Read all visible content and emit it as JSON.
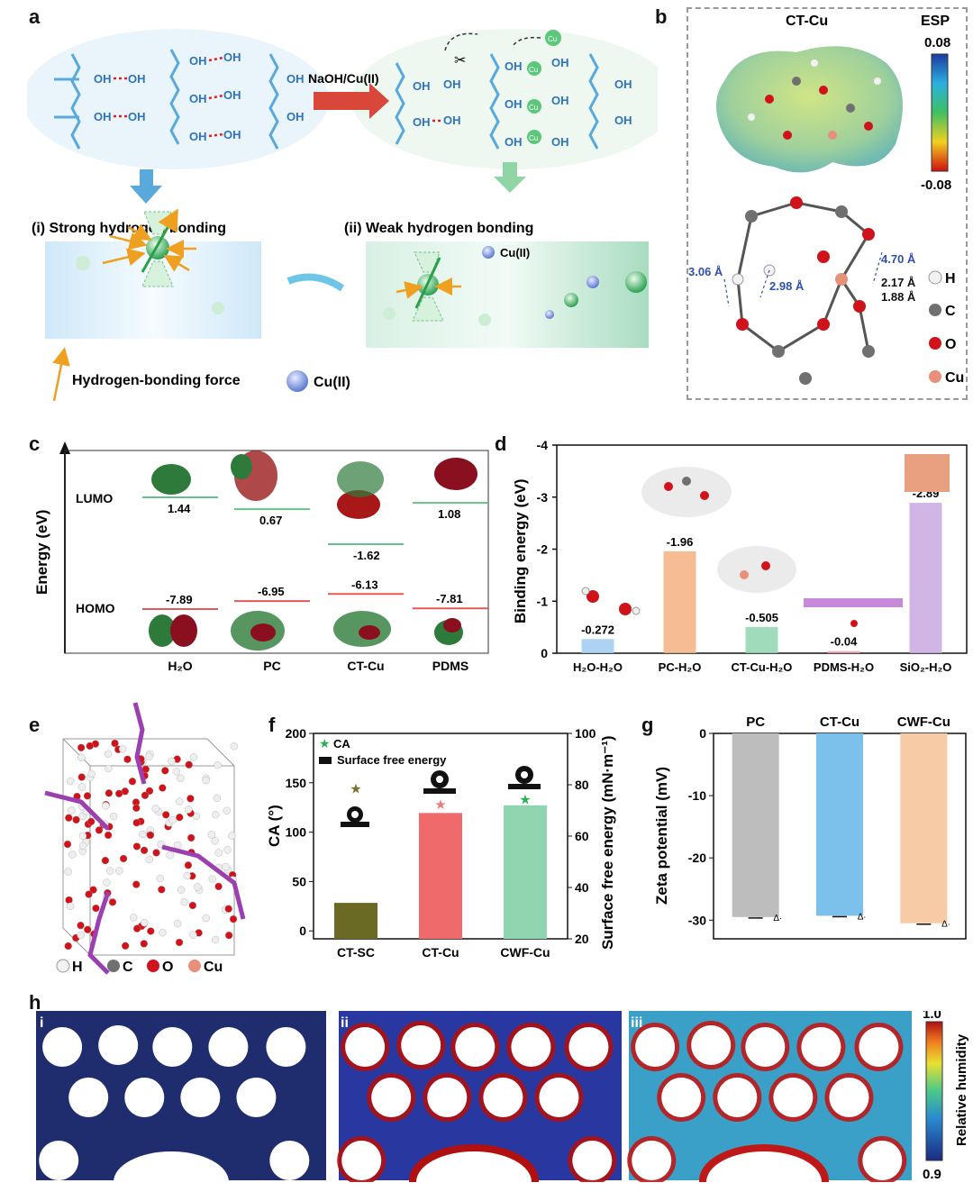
{
  "panels": {
    "a": "a",
    "b": "b",
    "c": "c",
    "d": "d",
    "e": "e",
    "f": "f",
    "g": "g",
    "h": "h"
  },
  "panel_a": {
    "reaction": "NaOH/Cu(II)",
    "oh": "OH",
    "cu": "Cu",
    "strong_label": "(i) Strong  hydrogen bonding",
    "weak_label": "(ii) Weak hydrogen bonding",
    "cu_ii": "Cu(II)",
    "legend_force": "Hydrogen-bonding force",
    "legend_cu": "Cu(II)"
  },
  "panel_b": {
    "title": "CT-Cu",
    "esp": "ESP",
    "esp_max": "0.08",
    "esp_min": "-0.08",
    "distances": [
      "3.06 Å",
      "2.98 Å",
      "4.70 Å",
      "2.17 Å",
      "1.88 Å"
    ],
    "legend": [
      "H",
      "C",
      "O",
      "Cu"
    ],
    "colors": {
      "H": "#f2f2f2",
      "C": "#707070",
      "O": "#d0121b",
      "Cu": "#e8907a"
    }
  },
  "chart_data": [
    {
      "id": "c",
      "type": "table",
      "title": "",
      "ylabel": "Energy (eV)",
      "row_labels": [
        "LUMO",
        "HOMO"
      ],
      "categories": [
        "H₂O",
        "PC",
        "CT-Cu",
        "PDMS"
      ],
      "series": [
        {
          "name": "LUMO",
          "values": [
            1.44,
            0.67,
            -1.62,
            1.08
          ]
        },
        {
          "name": "HOMO",
          "values": [
            -7.89,
            -6.95,
            -6.13,
            -7.81
          ]
        }
      ]
    },
    {
      "id": "d",
      "type": "bar",
      "categories": [
        "H₂O-H₂O",
        "PC-H₂O",
        "CT-Cu-H₂O",
        "PDMS-H₂O",
        "SiO₂-H₂O"
      ],
      "values": [
        -0.272,
        -1.96,
        -0.505,
        -0.04,
        -2.89
      ],
      "value_labels": [
        "-0.272",
        "-1.96",
        "-0.505",
        "-0.04",
        "-2.89"
      ],
      "ylabel": "Binding energy (eV)",
      "ylim": [
        0,
        -4
      ],
      "yticks": [
        "0",
        "-1",
        "-2",
        "-3",
        "-4"
      ],
      "colors": [
        "#9dcdf0",
        "#f4b183",
        "#8fd5b0",
        "#f0a0a8",
        "#c9a8e0"
      ]
    },
    {
      "id": "f",
      "type": "bar",
      "categories": [
        "CT-SC",
        "CT-Cu",
        "CWF-Cu"
      ],
      "series": [
        {
          "name": "Surface free energy",
          "values": [
            34,
            69,
            72
          ],
          "axis": "right"
        },
        {
          "name": "CA",
          "values": [
            145,
            129,
            134
          ],
          "axis": "left"
        }
      ],
      "ylabel": "CA (°)",
      "y2label": "Surface free energy  (mN·m⁻¹)",
      "ylim": [
        -8,
        200
      ],
      "yticks": [
        "0",
        "50",
        "100",
        "150",
        "200"
      ],
      "y2lim": [
        20,
        100
      ],
      "y2ticks": [
        "20",
        "40",
        "60",
        "80",
        "100"
      ],
      "legend": [
        "CA",
        "Surface free energy"
      ],
      "colors": [
        "#6b6a25",
        "#ef6b6b",
        "#8fd5b0"
      ],
      "star_colors": [
        "#7a6f2d",
        "#ef7a7a",
        "#2bb05a"
      ]
    },
    {
      "id": "g",
      "type": "bar",
      "categories": [
        "PC",
        "CT-Cu",
        "CWF-Cu"
      ],
      "values": [
        -29.5,
        -29.3,
        -30.5
      ],
      "ylabel": "Zeta potential (mV)",
      "ylim": [
        0,
        -33
      ],
      "yticks": [
        "0",
        "-10",
        "-20",
        "-30"
      ],
      "colors": [
        "#bdbdbd",
        "#7cc0ec",
        "#f7cba6"
      ]
    }
  ],
  "panel_e": {
    "legend": [
      "H",
      "C",
      "O",
      "Cu"
    ]
  },
  "panel_h": {
    "sub": [
      "i",
      "ii",
      "iii"
    ],
    "colorbar_max": "1.0",
    "colorbar_min": "0.9",
    "colorbar_label": "Relative humidity"
  }
}
